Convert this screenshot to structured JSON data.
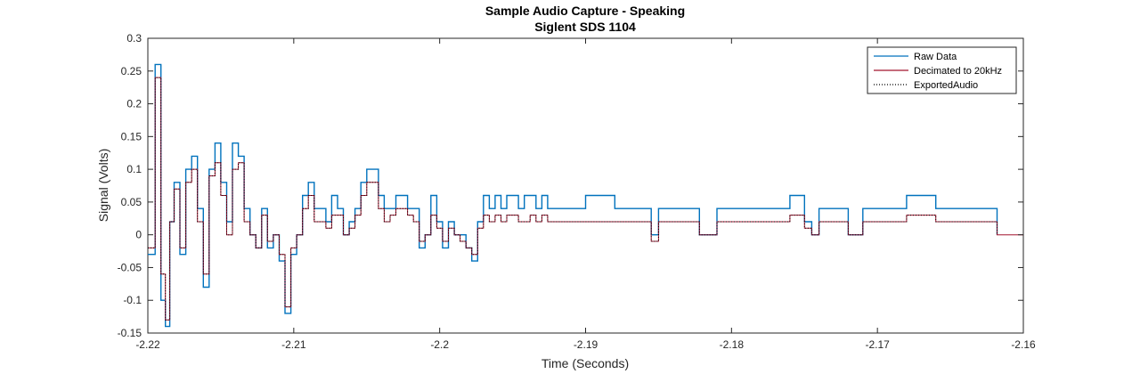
{
  "chart_data": {
    "type": "line",
    "title": "Sample Audio Capture - Speaking",
    "subtitle": "Siglent SDS 1104",
    "xlabel": "Time (Seconds)",
    "ylabel": "Signal (Volts)",
    "xlim": [
      -2.22,
      -2.16
    ],
    "ylim": [
      -0.15,
      0.3
    ],
    "xticks": [
      -2.22,
      -2.21,
      -2.2,
      -2.19,
      -2.18,
      -2.17,
      -2.16
    ],
    "xtick_labels": [
      "-2.22",
      "-2.21",
      "-2.2",
      "-2.19",
      "-2.18",
      "-2.17",
      "-2.16"
    ],
    "yticks": [
      -0.15,
      -0.1,
      -0.05,
      0,
      0.05,
      0.1,
      0.15,
      0.2,
      0.25,
      0.3
    ],
    "ytick_labels": [
      "-0.15",
      "-0.1",
      "-0.05",
      "0",
      "0.05",
      "0.1",
      "0.15",
      "0.2",
      "0.25",
      "0.3"
    ],
    "grid": false,
    "legend_position": "top-right",
    "series": [
      {
        "name": "Raw Data",
        "color": "#0072bd",
        "style": "solid",
        "x": [
          -2.22,
          -2.2195,
          -2.2191,
          -2.2188,
          -2.2185,
          -2.2182,
          -2.2178,
          -2.2174,
          -2.217,
          -2.2166,
          -2.2162,
          -2.2158,
          -2.2154,
          -2.215,
          -2.2146,
          -2.2142,
          -2.2138,
          -2.2134,
          -2.213,
          -2.2126,
          -2.2122,
          -2.2118,
          -2.2114,
          -2.211,
          -2.2106,
          -2.2102,
          -2.2098,
          -2.2094,
          -2.209,
          -2.2086,
          -2.2082,
          -2.2078,
          -2.2074,
          -2.207,
          -2.2066,
          -2.2062,
          -2.2058,
          -2.2054,
          -2.205,
          -2.2046,
          -2.2042,
          -2.2038,
          -2.2034,
          -2.203,
          -2.2026,
          -2.2022,
          -2.2018,
          -2.2014,
          -2.201,
          -2.2006,
          -2.2002,
          -2.1998,
          -2.1994,
          -2.199,
          -2.1986,
          -2.1982,
          -2.1978,
          -2.1974,
          -2.197,
          -2.1966,
          -2.1962,
          -2.1958,
          -2.1954,
          -2.195,
          -2.1946,
          -2.1942,
          -2.1938,
          -2.1934,
          -2.193,
          -2.1926,
          -2.19,
          -2.188,
          -2.186,
          -2.1855,
          -2.185,
          -2.183,
          -2.1822,
          -2.1818,
          -2.181,
          -2.18,
          -2.178,
          -2.176,
          -2.175,
          -2.1745,
          -2.174,
          -2.173,
          -2.172,
          -2.171,
          -2.17,
          -2.168,
          -2.166,
          -2.164,
          -2.1625,
          -2.1618
        ],
        "y": [
          -0.03,
          0.26,
          -0.1,
          -0.14,
          0.02,
          0.08,
          -0.03,
          0.1,
          0.12,
          0.04,
          -0.08,
          0.1,
          0.14,
          0.08,
          0.02,
          0.14,
          0.12,
          0.04,
          0.0,
          -0.02,
          0.04,
          -0.02,
          0.0,
          -0.04,
          -0.12,
          -0.03,
          0.0,
          0.06,
          0.08,
          0.04,
          0.04,
          0.02,
          0.06,
          0.04,
          0.0,
          0.02,
          0.04,
          0.08,
          0.1,
          0.1,
          0.06,
          0.04,
          0.04,
          0.06,
          0.06,
          0.04,
          0.04,
          -0.02,
          0.0,
          0.06,
          0.02,
          -0.02,
          0.02,
          0.0,
          0.0,
          -0.02,
          -0.04,
          0.02,
          0.06,
          0.04,
          0.06,
          0.04,
          0.06,
          0.06,
          0.04,
          0.06,
          0.06,
          0.04,
          0.06,
          0.04,
          0.06,
          0.04,
          0.04,
          0.0,
          0.04,
          0.04,
          0.0,
          0.0,
          0.04,
          0.04,
          0.04,
          0.06,
          0.02,
          0.0,
          0.04,
          0.04,
          0.0,
          0.04,
          0.04,
          0.06,
          0.04,
          0.04,
          0.04,
          0.0
        ]
      },
      {
        "name": "Decimated to 20kHz",
        "color": "#a2142f",
        "style": "solid",
        "x": [
          -2.22,
          -2.2195,
          -2.2191,
          -2.2188,
          -2.2185,
          -2.2182,
          -2.2178,
          -2.2174,
          -2.217,
          -2.2166,
          -2.2162,
          -2.2158,
          -2.2154,
          -2.215,
          -2.2146,
          -2.2142,
          -2.2138,
          -2.2134,
          -2.213,
          -2.2126,
          -2.2122,
          -2.2118,
          -2.2114,
          -2.211,
          -2.2106,
          -2.2102,
          -2.2098,
          -2.2094,
          -2.209,
          -2.2086,
          -2.2082,
          -2.2078,
          -2.2074,
          -2.207,
          -2.2066,
          -2.2062,
          -2.2058,
          -2.2054,
          -2.205,
          -2.2046,
          -2.2042,
          -2.2038,
          -2.2034,
          -2.203,
          -2.2026,
          -2.2022,
          -2.2018,
          -2.2014,
          -2.201,
          -2.2006,
          -2.2002,
          -2.1998,
          -2.1994,
          -2.199,
          -2.1986,
          -2.1982,
          -2.1978,
          -2.1974,
          -2.197,
          -2.1966,
          -2.1962,
          -2.1958,
          -2.1954,
          -2.195,
          -2.1946,
          -2.1942,
          -2.1938,
          -2.1934,
          -2.193,
          -2.1926,
          -2.19,
          -2.188,
          -2.186,
          -2.1855,
          -2.185,
          -2.183,
          -2.1822,
          -2.1818,
          -2.181,
          -2.18,
          -2.178,
          -2.176,
          -2.175,
          -2.1745,
          -2.174,
          -2.173,
          -2.172,
          -2.171,
          -2.17,
          -2.168,
          -2.166,
          -2.164,
          -2.1625,
          -2.1618,
          -2.16
        ],
        "y": [
          -0.02,
          0.24,
          -0.06,
          -0.13,
          0.02,
          0.07,
          -0.02,
          0.08,
          0.1,
          0.02,
          -0.06,
          0.09,
          0.11,
          0.06,
          0.0,
          0.1,
          0.11,
          0.02,
          0.0,
          -0.02,
          0.03,
          -0.01,
          0.0,
          -0.03,
          -0.11,
          -0.02,
          0.0,
          0.04,
          0.06,
          0.02,
          0.02,
          0.01,
          0.03,
          0.03,
          0.0,
          0.01,
          0.03,
          0.06,
          0.08,
          0.08,
          0.04,
          0.02,
          0.03,
          0.04,
          0.04,
          0.03,
          0.02,
          -0.01,
          0.0,
          0.03,
          0.01,
          -0.01,
          0.01,
          0.0,
          -0.01,
          -0.02,
          -0.03,
          0.01,
          0.03,
          0.02,
          0.03,
          0.02,
          0.03,
          0.03,
          0.02,
          0.02,
          0.03,
          0.02,
          0.03,
          0.02,
          0.02,
          0.02,
          0.02,
          -0.01,
          0.02,
          0.02,
          0.0,
          0.0,
          0.02,
          0.02,
          0.02,
          0.03,
          0.01,
          0.0,
          0.02,
          0.02,
          0.0,
          0.02,
          0.02,
          0.03,
          0.02,
          0.02,
          0.02,
          0.0,
          0.0
        ]
      },
      {
        "name": "ExportedAudio",
        "color": "#000000",
        "style": "dotted",
        "x": [
          -2.22,
          -2.2195,
          -2.2191,
          -2.2188,
          -2.2185,
          -2.2182,
          -2.2178,
          -2.2174,
          -2.217,
          -2.2166,
          -2.2162,
          -2.2158,
          -2.2154,
          -2.215,
          -2.2146,
          -2.2142,
          -2.2138,
          -2.2134,
          -2.213,
          -2.2126,
          -2.2122,
          -2.2118,
          -2.2114,
          -2.211,
          -2.2106,
          -2.2102,
          -2.2098,
          -2.2094,
          -2.209,
          -2.2086,
          -2.2082,
          -2.2078,
          -2.2074,
          -2.207,
          -2.2066,
          -2.2062,
          -2.2058,
          -2.2054,
          -2.205,
          -2.2046,
          -2.2042,
          -2.2038,
          -2.2034,
          -2.203,
          -2.2026,
          -2.2022,
          -2.2018,
          -2.2014,
          -2.201,
          -2.2006,
          -2.2002,
          -2.1998,
          -2.1994,
          -2.199,
          -2.1986,
          -2.1982,
          -2.1978,
          -2.1974,
          -2.197,
          -2.1966,
          -2.1962,
          -2.1958,
          -2.1954,
          -2.195,
          -2.1946,
          -2.1942,
          -2.1938,
          -2.1934,
          -2.193,
          -2.1926,
          -2.19,
          -2.188,
          -2.186,
          -2.1855,
          -2.185,
          -2.183,
          -2.1822,
          -2.1818,
          -2.181,
          -2.18,
          -2.178,
          -2.176,
          -2.175,
          -2.1745,
          -2.174,
          -2.173,
          -2.172,
          -2.171,
          -2.17,
          -2.168,
          -2.166,
          -2.164,
          -2.1625,
          -2.1618
        ],
        "y": [
          -0.02,
          0.24,
          -0.06,
          -0.13,
          0.02,
          0.07,
          -0.02,
          0.08,
          0.1,
          0.02,
          -0.06,
          0.09,
          0.11,
          0.06,
          0.0,
          0.1,
          0.11,
          0.02,
          0.0,
          -0.02,
          0.03,
          -0.01,
          0.0,
          -0.03,
          -0.11,
          -0.02,
          0.0,
          0.04,
          0.06,
          0.02,
          0.02,
          0.01,
          0.03,
          0.03,
          0.0,
          0.01,
          0.03,
          0.06,
          0.08,
          0.08,
          0.04,
          0.02,
          0.03,
          0.04,
          0.04,
          0.03,
          0.02,
          -0.01,
          0.0,
          0.03,
          0.01,
          -0.01,
          0.01,
          0.0,
          -0.01,
          -0.02,
          -0.03,
          0.01,
          0.03,
          0.02,
          0.03,
          0.02,
          0.03,
          0.03,
          0.02,
          0.02,
          0.03,
          0.02,
          0.03,
          0.02,
          0.02,
          0.02,
          0.02,
          -0.01,
          0.02,
          0.02,
          0.0,
          0.0,
          0.02,
          0.02,
          0.02,
          0.03,
          0.01,
          0.0,
          0.02,
          0.02,
          0.0,
          0.02,
          0.02,
          0.03,
          0.02,
          0.02,
          0.02,
          0.0
        ]
      }
    ]
  }
}
